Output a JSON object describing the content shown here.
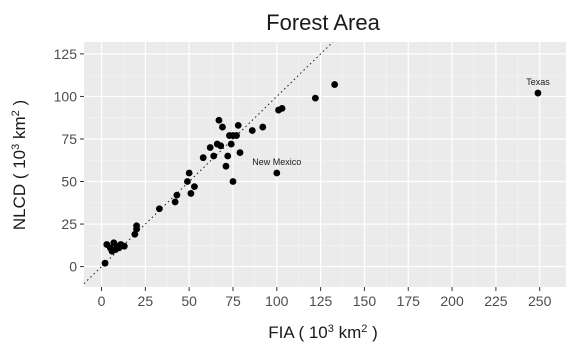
{
  "chart_data": {
    "type": "scatter",
    "title": "Forest Area",
    "xlabel": {
      "prefix": "FIA ( 10",
      "sup1": "3",
      "middle": " km",
      "sup2": "2",
      "suffix": " )"
    },
    "ylabel": {
      "prefix": "NLCD ( 10",
      "sup1": "3",
      "middle": " km",
      "sup2": "2",
      "suffix": " )"
    },
    "xlim": [
      -10,
      265
    ],
    "ylim": [
      -12,
      132
    ],
    "x_ticks": [
      0,
      25,
      50,
      75,
      100,
      125,
      150,
      175,
      200,
      225,
      250
    ],
    "y_ticks": [
      0,
      25,
      50,
      75,
      100,
      125
    ],
    "x_tick_labels": [
      "0",
      "25",
      "50",
      "75",
      "100",
      "125",
      "150",
      "175",
      "200",
      "225",
      "250"
    ],
    "y_tick_labels": [
      "0",
      "25",
      "50",
      "75",
      "100",
      "125"
    ],
    "grid": true,
    "reference_line": {
      "type": "identity",
      "style": "dotted",
      "slope": 1,
      "intercept": 0
    },
    "points": [
      {
        "x": 2,
        "y": 2
      },
      {
        "x": 3,
        "y": 13
      },
      {
        "x": 5,
        "y": 11
      },
      {
        "x": 6,
        "y": 9
      },
      {
        "x": 7,
        "y": 14
      },
      {
        "x": 8,
        "y": 10
      },
      {
        "x": 9,
        "y": 12
      },
      {
        "x": 10,
        "y": 11
      },
      {
        "x": 11,
        "y": 13
      },
      {
        "x": 13,
        "y": 12
      },
      {
        "x": 19,
        "y": 19
      },
      {
        "x": 20,
        "y": 22
      },
      {
        "x": 20,
        "y": 24
      },
      {
        "x": 33,
        "y": 34
      },
      {
        "x": 42,
        "y": 38
      },
      {
        "x": 43,
        "y": 42
      },
      {
        "x": 49,
        "y": 50
      },
      {
        "x": 50,
        "y": 55
      },
      {
        "x": 51,
        "y": 43
      },
      {
        "x": 53,
        "y": 47
      },
      {
        "x": 58,
        "y": 64
      },
      {
        "x": 62,
        "y": 70
      },
      {
        "x": 64,
        "y": 65
      },
      {
        "x": 66,
        "y": 72
      },
      {
        "x": 67,
        "y": 86
      },
      {
        "x": 68,
        "y": 71
      },
      {
        "x": 69,
        "y": 82
      },
      {
        "x": 71,
        "y": 59
      },
      {
        "x": 72,
        "y": 65
      },
      {
        "x": 73,
        "y": 77
      },
      {
        "x": 74,
        "y": 72
      },
      {
        "x": 75,
        "y": 50
      },
      {
        "x": 75,
        "y": 77
      },
      {
        "x": 77,
        "y": 77
      },
      {
        "x": 78,
        "y": 83
      },
      {
        "x": 79,
        "y": 67
      },
      {
        "x": 86,
        "y": 80
      },
      {
        "x": 92,
        "y": 82
      },
      {
        "x": 100,
        "y": 55
      },
      {
        "x": 101,
        "y": 92
      },
      {
        "x": 103,
        "y": 93
      },
      {
        "x": 122,
        "y": 99
      },
      {
        "x": 133,
        "y": 107
      },
      {
        "x": 249,
        "y": 102
      }
    ],
    "annotations": [
      {
        "text": "Texas",
        "x": 249,
        "y": 102
      },
      {
        "text": "New Mexico",
        "x": 100,
        "y": 55
      }
    ]
  }
}
